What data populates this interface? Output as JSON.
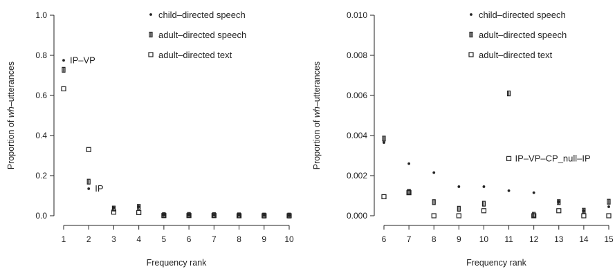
{
  "chart_data": [
    {
      "type": "scatter",
      "xlabel": "Frequency rank",
      "ylabel_parts": [
        "Proportion of ",
        "wh",
        "–utterances"
      ],
      "x_ticks": [
        1,
        2,
        3,
        4,
        5,
        6,
        7,
        8,
        9,
        10
      ],
      "y_ticks": [
        "0.0",
        "0.2",
        "0.4",
        "0.6",
        "0.8",
        "1.0"
      ],
      "xlim": [
        1,
        10
      ],
      "ylim": [
        0,
        1.0
      ],
      "grid": false,
      "legend_position": "top-right",
      "series": [
        {
          "name": "child–directed speech",
          "marker": "dot",
          "values": [
            {
              "x": 1,
              "y": 0.775
            },
            {
              "x": 2,
              "y": 0.135
            },
            {
              "x": 3,
              "y": 0.04
            },
            {
              "x": 4,
              "y": 0.045
            },
            {
              "x": 5,
              "y": 0.005
            },
            {
              "x": 6,
              "y": 0.004
            },
            {
              "x": 7,
              "y": 0.003
            },
            {
              "x": 8,
              "y": 0.002
            },
            {
              "x": 9,
              "y": 0.002
            },
            {
              "x": 10,
              "y": 0.001
            }
          ]
        },
        {
          "name": "adult–directed speech",
          "marker": "bar",
          "values": [
            {
              "x": 1,
              "y": 0.728
            },
            {
              "x": 2,
              "y": 0.17
            },
            {
              "x": 3,
              "y": 0.036
            },
            {
              "x": 4,
              "y": 0.044
            },
            {
              "x": 5,
              "y": 0.003
            },
            {
              "x": 6,
              "y": 0.004
            },
            {
              "x": 7,
              "y": 0.003
            },
            {
              "x": 8,
              "y": 0.002
            },
            {
              "x": 9,
              "y": 0.001
            },
            {
              "x": 10,
              "y": 0.001
            }
          ]
        },
        {
          "name": "adult–directed text",
          "marker": "square",
          "values": [
            {
              "x": 1,
              "y": 0.633
            },
            {
              "x": 2,
              "y": 0.33
            },
            {
              "x": 3,
              "y": 0.018
            },
            {
              "x": 4,
              "y": 0.016
            },
            {
              "x": 5,
              "y": 0.001
            },
            {
              "x": 6,
              "y": 0.001
            },
            {
              "x": 7,
              "y": 0.001
            },
            {
              "x": 8,
              "y": 0.0
            },
            {
              "x": 9,
              "y": 0.0
            },
            {
              "x": 10,
              "y": 0.0
            }
          ]
        }
      ],
      "annotations": [
        {
          "text": "IP–VP",
          "x": 1,
          "y": 0.775
        },
        {
          "text": "IP",
          "x": 2,
          "y": 0.135
        }
      ]
    },
    {
      "type": "scatter",
      "xlabel": "Frequency rank",
      "ylabel_parts": [
        "Proportion of ",
        "wh",
        "–utterances"
      ],
      "x_ticks": [
        6,
        7,
        8,
        9,
        10,
        11,
        12,
        13,
        14,
        15
      ],
      "y_ticks": [
        "0.000",
        "0.002",
        "0.004",
        "0.006",
        "0.008",
        "0.010"
      ],
      "xlim": [
        6,
        15
      ],
      "ylim": [
        0,
        0.01
      ],
      "grid": false,
      "legend_position": "top-right",
      "series": [
        {
          "name": "child–directed speech",
          "marker": "dot",
          "values": [
            {
              "x": 6,
              "y": 0.00365
            },
            {
              "x": 7,
              "y": 0.0026
            },
            {
              "x": 8,
              "y": 0.00215
            },
            {
              "x": 9,
              "y": 0.00145
            },
            {
              "x": 10,
              "y": 0.00145
            },
            {
              "x": 11,
              "y": 0.00125
            },
            {
              "x": 12,
              "y": 0.00115
            },
            {
              "x": 13,
              "y": 0.0007
            },
            {
              "x": 14,
              "y": 0.00025
            },
            {
              "x": 15,
              "y": 0.00045
            }
          ]
        },
        {
          "name": "adult–directed speech",
          "marker": "bar",
          "values": [
            {
              "x": 6,
              "y": 0.00385
            },
            {
              "x": 7,
              "y": 0.0012
            },
            {
              "x": 8,
              "y": 0.00068
            },
            {
              "x": 9,
              "y": 0.00035
            },
            {
              "x": 10,
              "y": 0.0006
            },
            {
              "x": 11,
              "y": 0.0061
            },
            {
              "x": 12,
              "y": 5e-05
            },
            {
              "x": 13,
              "y": 0.00068
            },
            {
              "x": 14,
              "y": 0.00025
            },
            {
              "x": 15,
              "y": 0.0007
            }
          ]
        },
        {
          "name": "adult–directed text",
          "marker": "square",
          "values": [
            {
              "x": 6,
              "y": 0.00095
            },
            {
              "x": 7,
              "y": 0.00115
            },
            {
              "x": 8,
              "y": 0.0
            },
            {
              "x": 9,
              "y": 0.0
            },
            {
              "x": 10,
              "y": 0.00025
            },
            {
              "x": 11,
              "y": 0.00285
            },
            {
              "x": 12,
              "y": 0.0
            },
            {
              "x": 13,
              "y": 0.00025
            },
            {
              "x": 14,
              "y": 0.0
            },
            {
              "x": 15,
              "y": 0.0
            }
          ]
        }
      ],
      "annotations": [
        {
          "text": "IP–VP–CP_null–IP",
          "x": 11,
          "y": 0.00285
        }
      ]
    }
  ]
}
